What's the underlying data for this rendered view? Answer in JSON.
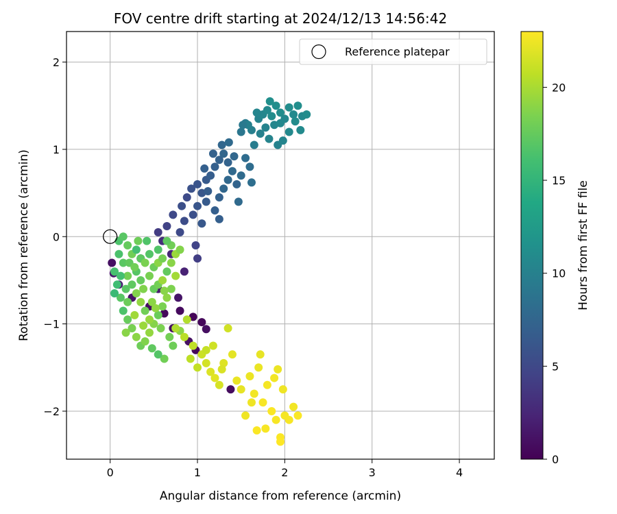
{
  "chart_data": {
    "type": "scatter",
    "title": "FOV centre drift starting at 2024/12/13 14:56:42",
    "xlabel": "Angular distance from reference (arcmin)",
    "ylabel": "Rotation from reference (arcmin)",
    "xlim": [
      -0.5,
      4.4
    ],
    "ylim": [
      -2.55,
      2.35
    ],
    "xticks": [
      0,
      1,
      2,
      3,
      4
    ],
    "yticks": [
      -2,
      -1,
      0,
      1,
      2
    ],
    "grid": true,
    "legend": {
      "position": "top-right",
      "entries": [
        {
          "label": "Reference platepar",
          "marker": "open-circle"
        }
      ]
    },
    "reference_point": {
      "x": 0,
      "y": 0
    },
    "colorbar": {
      "label": "Hours from first FF file",
      "min": 0,
      "max": 23,
      "ticks": [
        0,
        5,
        10,
        15,
        20
      ],
      "colormap": "viridis"
    },
    "series": [
      {
        "points": [
          [
            0.02,
            -0.3,
            1.0
          ],
          [
            0.04,
            -0.42,
            1.5
          ],
          [
            0.1,
            -0.55,
            2.0
          ],
          [
            0.25,
            -0.7,
            1.2
          ],
          [
            0.45,
            -0.8,
            0.8
          ],
          [
            0.62,
            -0.88,
            0.5
          ],
          [
            0.8,
            -0.85,
            0.6
          ],
          [
            0.95,
            -0.92,
            0.3
          ],
          [
            1.05,
            -0.98,
            0.4
          ],
          [
            1.1,
            -1.06,
            0.9
          ],
          [
            0.9,
            -1.2,
            1.0
          ],
          [
            0.78,
            -0.7,
            1.3
          ],
          [
            0.85,
            -0.4,
            2.2
          ],
          [
            0.7,
            -0.2,
            2.5
          ],
          [
            0.6,
            -0.05,
            3.0
          ],
          [
            1.38,
            -1.75,
            0.7
          ],
          [
            0.98,
            -1.3,
            0.5
          ],
          [
            0.72,
            -1.05,
            0.9
          ],
          [
            0.55,
            -0.6,
            1.8
          ],
          [
            0.35,
            -0.25,
            2.6
          ],
          [
            0.55,
            0.05,
            4.0
          ],
          [
            0.65,
            0.12,
            4.5
          ],
          [
            0.72,
            0.25,
            5.0
          ],
          [
            0.82,
            0.35,
            5.5
          ],
          [
            0.88,
            0.45,
            5.2
          ],
          [
            0.93,
            0.55,
            5.8
          ],
          [
            1.0,
            0.6,
            6.0
          ],
          [
            1.05,
            0.5,
            6.2
          ],
          [
            1.1,
            0.65,
            6.5
          ],
          [
            1.15,
            0.7,
            6.8
          ],
          [
            1.2,
            0.8,
            7.0
          ],
          [
            1.25,
            0.88,
            7.2
          ],
          [
            1.3,
            0.95,
            7.5
          ],
          [
            1.35,
            0.85,
            7.3
          ],
          [
            1.4,
            0.75,
            7.8
          ],
          [
            1.45,
            0.6,
            7.4
          ],
          [
            1.5,
            0.7,
            8.0
          ],
          [
            1.1,
            0.4,
            6.6
          ],
          [
            1.0,
            0.35,
            6.1
          ],
          [
            0.95,
            0.25,
            5.6
          ],
          [
            1.2,
            0.3,
            6.9
          ],
          [
            1.05,
            0.15,
            6.3
          ],
          [
            1.25,
            0.45,
            7.1
          ],
          [
            1.3,
            0.55,
            7.6
          ],
          [
            1.35,
            0.65,
            7.7
          ],
          [
            1.6,
            0.8,
            8.2
          ],
          [
            1.62,
            0.62,
            8.3
          ],
          [
            1.47,
            0.4,
            7.9
          ],
          [
            1.25,
            0.2,
            6.9
          ],
          [
            1.12,
            0.52,
            6.7
          ],
          [
            0.8,
            0.05,
            5.1
          ],
          [
            0.98,
            -0.1,
            4.6
          ],
          [
            1.0,
            -0.25,
            4.2
          ],
          [
            0.85,
            0.18,
            5.4
          ],
          [
            1.08,
            0.78,
            7.0
          ],
          [
            1.18,
            0.95,
            7.2
          ],
          [
            1.28,
            1.05,
            7.5
          ],
          [
            1.36,
            1.08,
            7.9
          ],
          [
            1.55,
            0.9,
            8.1
          ],
          [
            1.42,
            0.92,
            7.6
          ],
          [
            1.5,
            1.2,
            9.0
          ],
          [
            1.55,
            1.3,
            9.5
          ],
          [
            1.62,
            1.22,
            9.8
          ],
          [
            1.7,
            1.35,
            10.2
          ],
          [
            1.75,
            1.4,
            10.5
          ],
          [
            1.8,
            1.45,
            10.8
          ],
          [
            1.85,
            1.38,
            11.0
          ],
          [
            1.9,
            1.5,
            11.2
          ],
          [
            1.95,
            1.42,
            11.0
          ],
          [
            2.0,
            1.35,
            10.6
          ],
          [
            2.05,
            1.48,
            11.1
          ],
          [
            2.1,
            1.4,
            10.9
          ],
          [
            2.15,
            1.5,
            11.2
          ],
          [
            2.2,
            1.38,
            10.7
          ],
          [
            2.25,
            1.4,
            11.0
          ],
          [
            1.72,
            1.18,
            10.0
          ],
          [
            1.82,
            1.12,
            10.3
          ],
          [
            1.92,
            1.05,
            10.1
          ],
          [
            1.98,
            1.1,
            10.4
          ],
          [
            2.05,
            1.2,
            10.8
          ],
          [
            1.65,
            1.05,
            9.6
          ],
          [
            1.58,
            1.28,
            9.9
          ],
          [
            1.78,
            1.25,
            10.2
          ],
          [
            1.88,
            1.28,
            10.5
          ],
          [
            2.18,
            1.22,
            10.9
          ],
          [
            1.52,
            1.28,
            9.3
          ],
          [
            1.68,
            1.42,
            10.4
          ],
          [
            1.83,
            1.55,
            11.3
          ],
          [
            1.95,
            1.3,
            10.7
          ],
          [
            2.12,
            1.32,
            11.0
          ],
          [
            0.1,
            -0.05,
            16.5
          ],
          [
            0.15,
            0.0,
            17.0
          ],
          [
            0.2,
            -0.1,
            17.5
          ],
          [
            0.25,
            -0.2,
            18.0
          ],
          [
            0.3,
            -0.15,
            16.0
          ],
          [
            0.35,
            -0.25,
            17.2
          ],
          [
            0.4,
            -0.3,
            18.4
          ],
          [
            0.45,
            -0.2,
            16.8
          ],
          [
            0.5,
            -0.35,
            17.8
          ],
          [
            0.55,
            -0.3,
            19.0
          ],
          [
            0.6,
            -0.25,
            18.2
          ],
          [
            0.65,
            -0.4,
            17.4
          ],
          [
            0.7,
            -0.3,
            18.9
          ],
          [
            0.75,
            -0.2,
            19.5
          ],
          [
            0.7,
            -0.1,
            18.0
          ],
          [
            0.05,
            -0.4,
            16.2
          ],
          [
            0.08,
            -0.55,
            15.8
          ],
          [
            0.12,
            -0.7,
            17.0
          ],
          [
            0.15,
            -0.85,
            16.5
          ],
          [
            0.2,
            -0.95,
            17.6
          ],
          [
            0.25,
            -1.05,
            18.3
          ],
          [
            0.3,
            -1.15,
            19.0
          ],
          [
            0.35,
            -1.25,
            17.9
          ],
          [
            0.4,
            -1.2,
            18.6
          ],
          [
            0.45,
            -1.1,
            19.3
          ],
          [
            0.5,
            -1.0,
            18.8
          ],
          [
            0.55,
            -0.9,
            17.7
          ],
          [
            0.6,
            -0.8,
            18.4
          ],
          [
            0.65,
            -0.7,
            19.1
          ],
          [
            0.7,
            -0.6,
            18.5
          ],
          [
            0.15,
            -0.3,
            17.1
          ],
          [
            0.2,
            -0.45,
            18.2
          ],
          [
            0.25,
            -0.55,
            17.3
          ],
          [
            0.3,
            -0.65,
            18.7
          ],
          [
            0.35,
            -0.75,
            19.2
          ],
          [
            0.4,
            -0.85,
            18.0
          ],
          [
            0.45,
            -0.95,
            19.4
          ],
          [
            0.5,
            -0.6,
            17.6
          ],
          [
            0.55,
            -0.55,
            18.1
          ],
          [
            0.6,
            -0.5,
            19.6
          ],
          [
            0.3,
            -0.4,
            16.9
          ],
          [
            0.35,
            -0.5,
            17.5
          ],
          [
            0.45,
            -0.45,
            18.3
          ],
          [
            0.2,
            -0.75,
            17.8
          ],
          [
            0.1,
            -0.2,
            16.4
          ],
          [
            0.05,
            -0.65,
            15.5
          ],
          [
            0.18,
            -1.1,
            18.9
          ],
          [
            0.28,
            -0.9,
            19.7
          ],
          [
            0.38,
            -0.6,
            18.6
          ],
          [
            0.48,
            -0.75,
            19.0
          ],
          [
            0.55,
            -0.15,
            16.7
          ],
          [
            0.65,
            -0.05,
            17.3
          ],
          [
            0.75,
            -0.45,
            19.8
          ],
          [
            0.8,
            -0.15,
            18.7
          ],
          [
            0.22,
            -0.3,
            17.4
          ],
          [
            0.42,
            -0.05,
            16.6
          ],
          [
            0.32,
            -0.05,
            17.9
          ],
          [
            0.12,
            -0.45,
            16.1
          ],
          [
            0.62,
            -0.62,
            18.9
          ],
          [
            0.52,
            -0.82,
            19.2
          ],
          [
            0.58,
            -1.05,
            18.4
          ],
          [
            0.38,
            -1.02,
            19.5
          ],
          [
            0.28,
            -0.35,
            18.0
          ],
          [
            0.18,
            -0.6,
            17.0
          ],
          [
            0.48,
            -1.28,
            17.3
          ],
          [
            0.62,
            -1.4,
            18.0
          ],
          [
            0.55,
            -1.35,
            16.8
          ],
          [
            0.72,
            -1.25,
            17.9
          ],
          [
            0.8,
            -1.08,
            19.0
          ],
          [
            0.68,
            -1.15,
            18.1
          ],
          [
            0.75,
            -1.05,
            20.2
          ],
          [
            0.85,
            -1.15,
            20.6
          ],
          [
            0.95,
            -1.25,
            20.8
          ],
          [
            1.05,
            -1.35,
            21.2
          ],
          [
            1.1,
            -1.45,
            21.5
          ],
          [
            1.15,
            -1.55,
            21.8
          ],
          [
            1.2,
            -1.62,
            22.0
          ],
          [
            1.25,
            -1.7,
            21.6
          ],
          [
            1.0,
            -1.5,
            20.9
          ],
          [
            1.1,
            -1.3,
            21.0
          ],
          [
            1.3,
            -1.45,
            21.9
          ],
          [
            1.35,
            -1.05,
            21.4
          ],
          [
            1.4,
            -1.35,
            22.1
          ],
          [
            1.45,
            -1.65,
            22.3
          ],
          [
            1.5,
            -1.75,
            22.2
          ],
          [
            1.55,
            -2.05,
            22.5
          ],
          [
            1.6,
            -1.6,
            22.4
          ],
          [
            1.65,
            -1.8,
            22.6
          ],
          [
            1.7,
            -1.5,
            22.3
          ],
          [
            1.75,
            -1.9,
            22.8
          ],
          [
            1.8,
            -1.7,
            22.7
          ],
          [
            1.85,
            -2.0,
            22.9
          ],
          [
            1.9,
            -2.1,
            22.8
          ],
          [
            1.95,
            -2.3,
            22.9
          ],
          [
            2.0,
            -2.05,
            22.7
          ],
          [
            2.05,
            -2.1,
            22.8
          ],
          [
            2.1,
            -1.95,
            22.6
          ],
          [
            2.15,
            -2.05,
            22.9
          ],
          [
            1.92,
            -1.52,
            22.4
          ],
          [
            1.98,
            -1.75,
            22.5
          ],
          [
            1.72,
            -1.35,
            22.2
          ],
          [
            1.78,
            -2.2,
            22.8
          ],
          [
            1.68,
            -2.22,
            22.9
          ],
          [
            1.88,
            -1.62,
            22.6
          ],
          [
            0.88,
            -0.95,
            20.3
          ],
          [
            0.92,
            -1.4,
            20.7
          ],
          [
            1.18,
            -1.25,
            21.3
          ],
          [
            1.28,
            -1.52,
            21.7
          ],
          [
            1.95,
            -2.35,
            23.0
          ],
          [
            1.62,
            -1.9,
            22.5
          ]
        ]
      }
    ]
  }
}
